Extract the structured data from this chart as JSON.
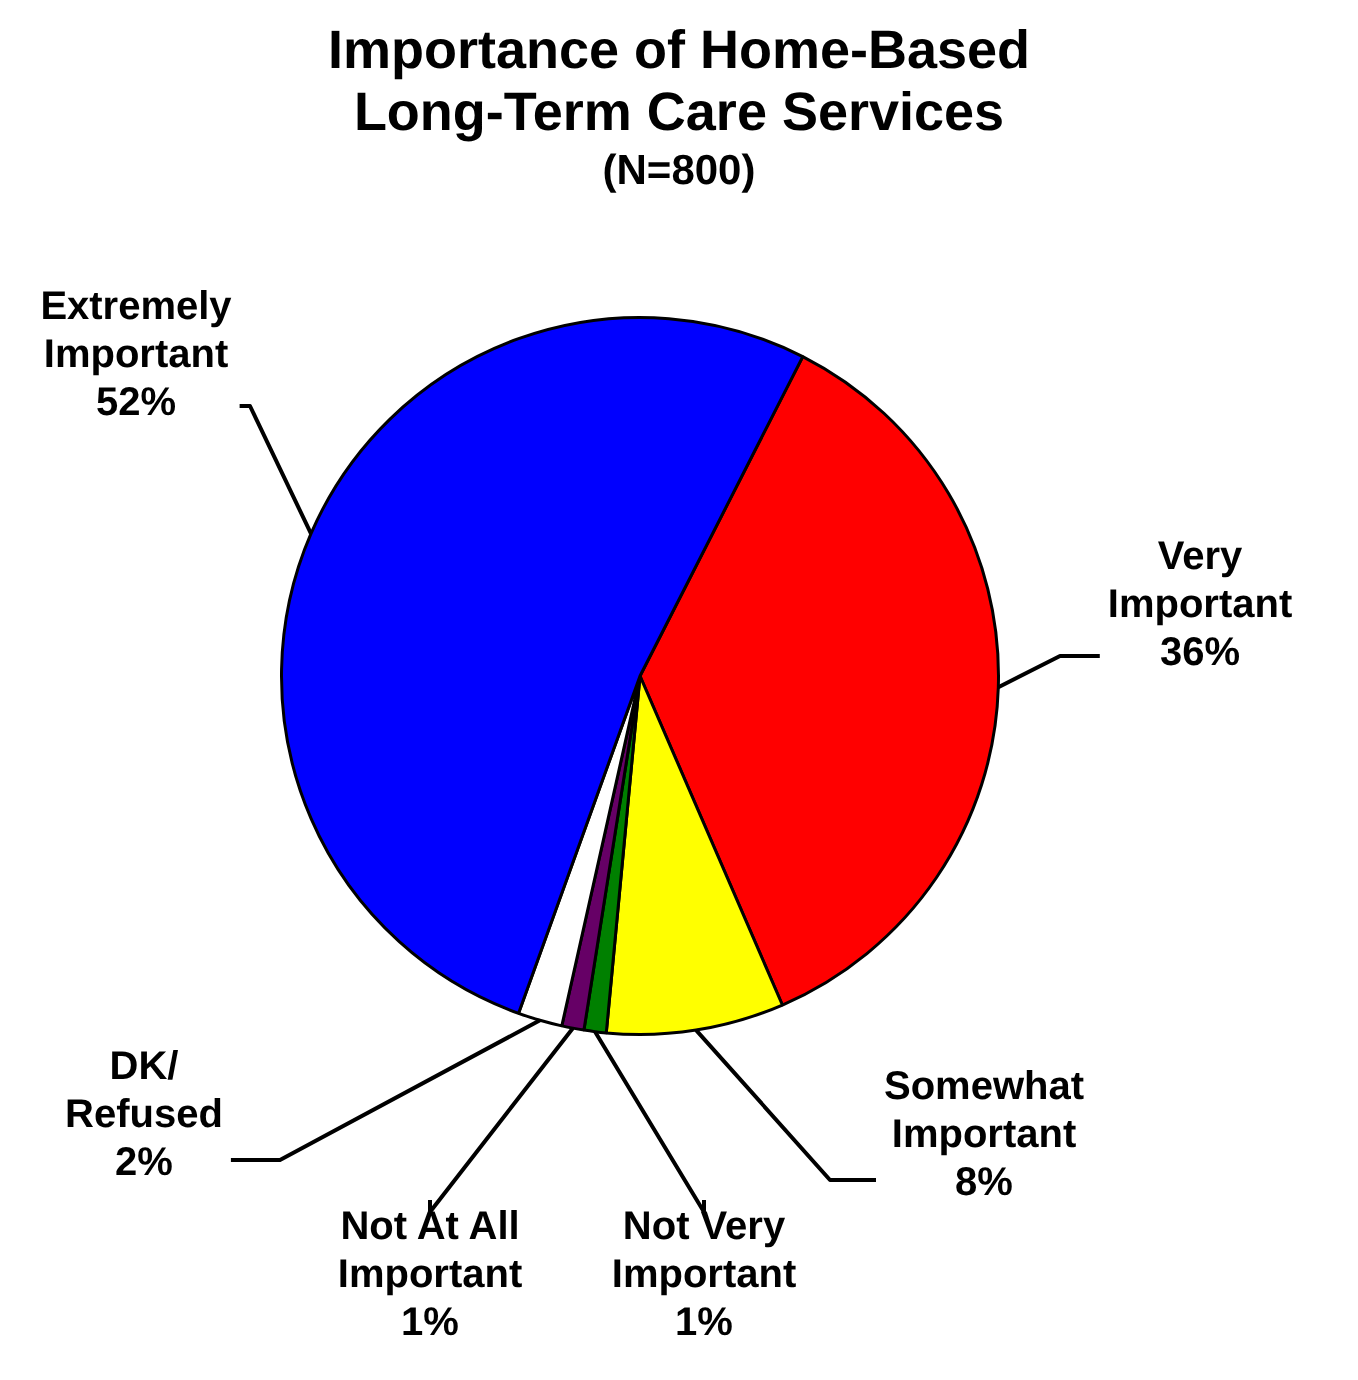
{
  "chart_data": {
    "type": "pie",
    "title": "Importance of Home-Based Long-Term Care Services",
    "subtitle": "(N=800)",
    "categories": [
      "Very\nImportant",
      "Somewhat\nImportant",
      "Not Very\nImportant",
      "Not At All\nImportant",
      "DK/\nRefused",
      "Extremely\nImportant"
    ],
    "values": [
      36,
      8,
      1,
      1,
      2,
      52
    ],
    "colors": [
      "#ff0000",
      "#ffff00",
      "#008000",
      "#660066",
      "#ffffff",
      "#0000ff"
    ],
    "value_labels": [
      "36%",
      "8%",
      "1%",
      "1%",
      "2%",
      "52%"
    ],
    "legend": false
  }
}
